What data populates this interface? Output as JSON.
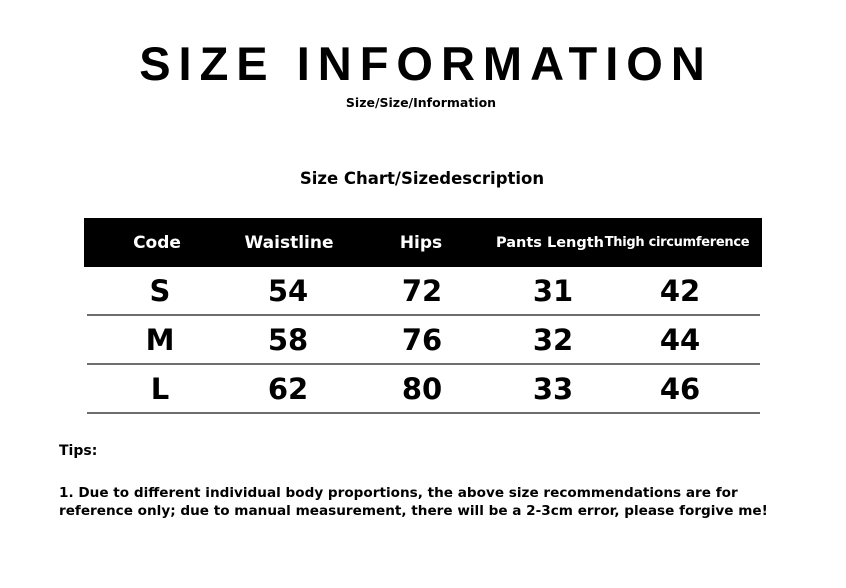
{
  "title": "SIZE INFORMATION",
  "subtitle": "Size/Size/Information",
  "chart_title": "Size Chart/Sizedescription",
  "table": {
    "headers": [
      "Code",
      "Waistline",
      "Hips",
      "Pants Length",
      "Thigh circumference"
    ],
    "rows": [
      [
        "S",
        "54",
        "72",
        "31",
        "42"
      ],
      [
        "M",
        "58",
        "76",
        "32",
        "44"
      ],
      [
        "L",
        "62",
        "80",
        "33",
        "46"
      ]
    ]
  },
  "tips_label": "Tips:",
  "tips_lines": [
    "1. Due to different individual body proportions, the above size recommendations are for",
    "reference only; due to manual measurement, there will be a 2-3cm error, please forgive me!"
  ]
}
